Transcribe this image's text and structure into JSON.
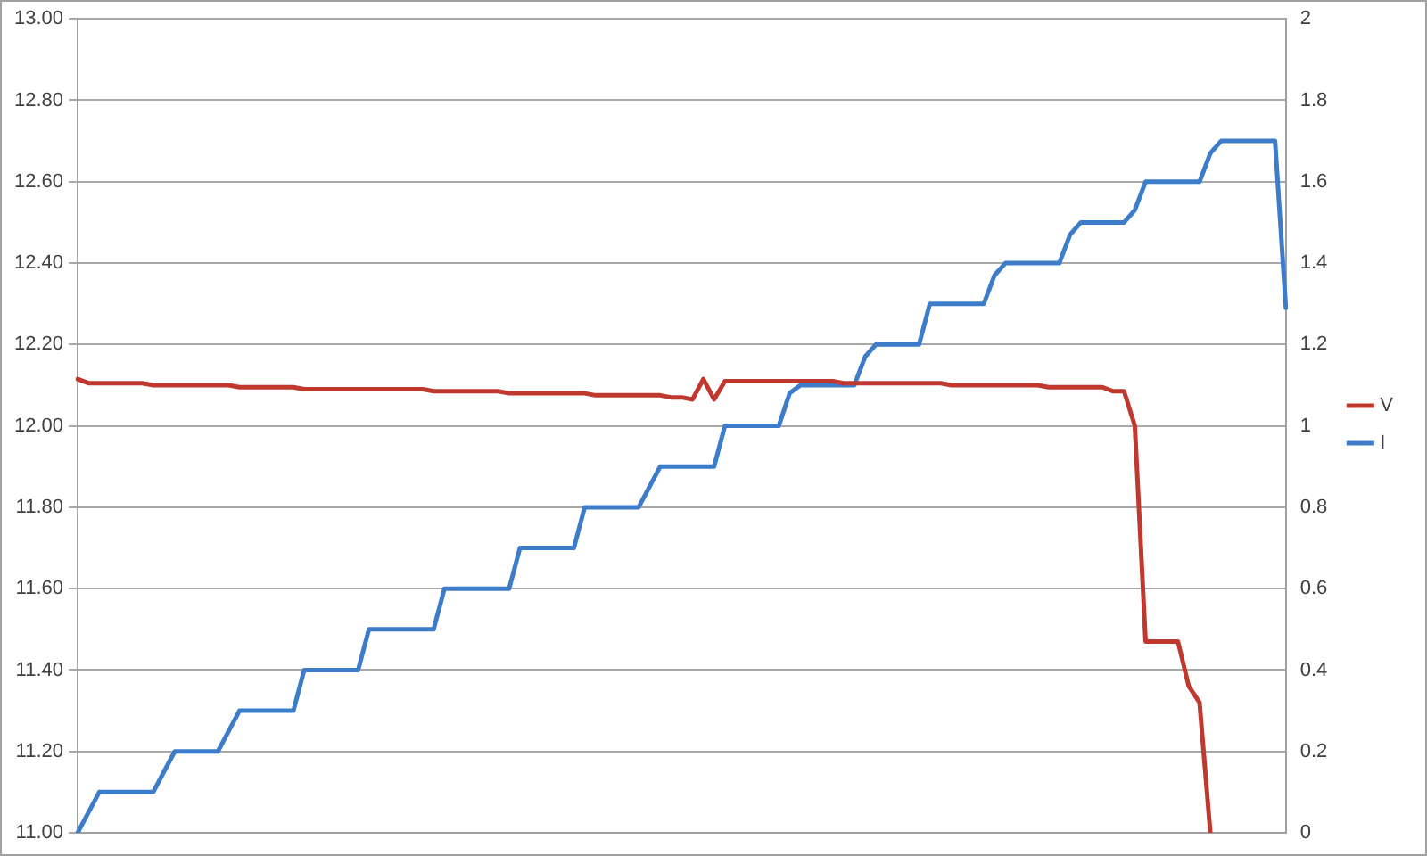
{
  "chart_data": {
    "type": "line",
    "categories": [
      null,
      null,
      null,
      null,
      null,
      null,
      null,
      null,
      null,
      null,
      null,
      null,
      null,
      null,
      null,
      null,
      null,
      null,
      null,
      null,
      null,
      null,
      null,
      null,
      null,
      null,
      null,
      null,
      null,
      null,
      null,
      null,
      null,
      null,
      null,
      null,
      null,
      null,
      null,
      null,
      null,
      null,
      null,
      null,
      null,
      null,
      null,
      null,
      null,
      null,
      null,
      null,
      null,
      null,
      null,
      null,
      null,
      null,
      null,
      null,
      null,
      null,
      null,
      null,
      null,
      null,
      null,
      null,
      null,
      null,
      null,
      null,
      null,
      null,
      null,
      null,
      null,
      null,
      null,
      null,
      null,
      null,
      null,
      null,
      null,
      null,
      null,
      null,
      null,
      null,
      null,
      null,
      null,
      null,
      null,
      null,
      null,
      null,
      null,
      null,
      null,
      null,
      null,
      null,
      null,
      null,
      null,
      null,
      null,
      null,
      null,
      null,
      null
    ],
    "series": [
      {
        "name": "V",
        "color": "#c0392f",
        "values": [
          12.115,
          12.105,
          12.105,
          12.105,
          12.105,
          12.105,
          12.105,
          12.1,
          12.1,
          12.1,
          12.1,
          12.1,
          12.1,
          12.1,
          12.1,
          12.095,
          12.095,
          12.095,
          12.095,
          12.095,
          12.095,
          12.09,
          12.09,
          12.09,
          12.09,
          12.09,
          12.09,
          12.09,
          12.09,
          12.09,
          12.09,
          12.09,
          12.09,
          12.085,
          12.085,
          12.085,
          12.085,
          12.085,
          12.085,
          12.085,
          12.08,
          12.08,
          12.08,
          12.08,
          12.08,
          12.08,
          12.08,
          12.08,
          12.075,
          12.075,
          12.075,
          12.075,
          12.075,
          12.075,
          12.075,
          12.07,
          12.07,
          12.065,
          12.115,
          12.065,
          12.11,
          12.11,
          12.11,
          12.11,
          12.11,
          12.11,
          12.11,
          12.11,
          12.11,
          12.11,
          12.11,
          12.105,
          12.105,
          12.105,
          12.105,
          12.105,
          12.105,
          12.105,
          12.105,
          12.105,
          12.105,
          12.1,
          12.1,
          12.1,
          12.1,
          12.1,
          12.1,
          12.1,
          12.1,
          12.1,
          12.095,
          12.095,
          12.095,
          12.095,
          12.095,
          12.095,
          12.085,
          12.085,
          12.0,
          11.47,
          11.47,
          11.47,
          11.47,
          11.36,
          11.32,
          11.0,
          null,
          null,
          null,
          null,
          null,
          null,
          null
        ]
      },
      {
        "name": "I",
        "color": "#3d7cc9",
        "axis": "y2",
        "values": [
          0,
          0.05,
          0.1,
          0.1,
          0.1,
          0.1,
          0.1,
          0.1,
          0.15,
          0.2,
          0.2,
          0.2,
          0.2,
          0.2,
          0.25,
          0.3,
          0.3,
          0.3,
          0.3,
          0.3,
          0.3,
          0.4,
          0.4,
          0.4,
          0.4,
          0.4,
          0.4,
          0.5,
          0.5,
          0.5,
          0.5,
          0.5,
          0.5,
          0.5,
          0.6,
          0.6,
          0.6,
          0.6,
          0.6,
          0.6,
          0.6,
          0.7,
          0.7,
          0.7,
          0.7,
          0.7,
          0.7,
          0.8,
          0.8,
          0.8,
          0.8,
          0.8,
          0.8,
          0.85,
          0.9,
          0.9,
          0.9,
          0.9,
          0.9,
          0.9,
          1.0,
          1.0,
          1.0,
          1.0,
          1.0,
          1.0,
          1.08,
          1.1,
          1.1,
          1.1,
          1.1,
          1.1,
          1.1,
          1.17,
          1.2,
          1.2,
          1.2,
          1.2,
          1.2,
          1.3,
          1.3,
          1.3,
          1.3,
          1.3,
          1.3,
          1.37,
          1.4,
          1.4,
          1.4,
          1.4,
          1.4,
          1.4,
          1.47,
          1.5,
          1.5,
          1.5,
          1.5,
          1.5,
          1.53,
          1.6,
          1.6,
          1.6,
          1.6,
          1.6,
          1.6,
          1.67,
          1.7,
          1.7,
          1.7,
          1.7,
          1.7,
          1.7,
          1.29
        ]
      }
    ],
    "ylim": [
      11.0,
      13.0
    ],
    "yticks": [
      {
        "value": 11.0,
        "label": "11.00"
      },
      {
        "value": 11.2,
        "label": "11.20"
      },
      {
        "value": 11.4,
        "label": "11.40"
      },
      {
        "value": 11.6,
        "label": "11.60"
      },
      {
        "value": 11.8,
        "label": "11.80"
      },
      {
        "value": 12.0,
        "label": "12.00"
      },
      {
        "value": 12.2,
        "label": "12.20"
      },
      {
        "value": 12.4,
        "label": "12.40"
      },
      {
        "value": 12.6,
        "label": "12.60"
      },
      {
        "value": 12.8,
        "label": "12.80"
      },
      {
        "value": 13.0,
        "label": "13.00"
      }
    ],
    "y2lim": [
      0,
      2
    ],
    "y2ticks": [
      0,
      0.2,
      0.4,
      0.6,
      0.8,
      1,
      1.2,
      1.4,
      1.6,
      1.8,
      2
    ],
    "grid": "y",
    "legend": "right",
    "marker": "none",
    "line_style": "solid"
  }
}
